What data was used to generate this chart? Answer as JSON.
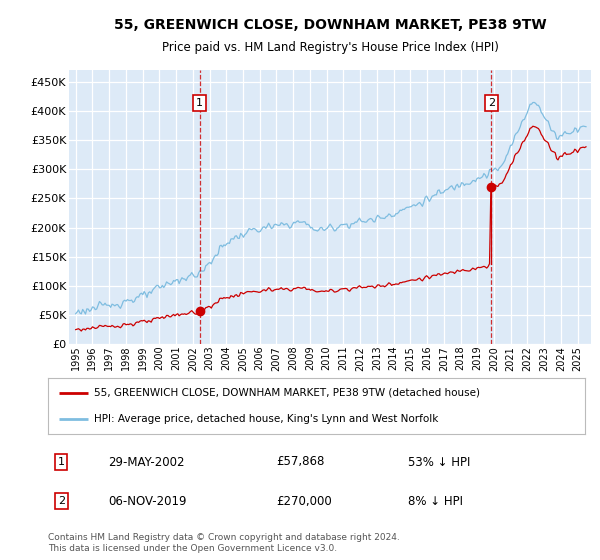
{
  "title": "55, GREENWICH CLOSE, DOWNHAM MARKET, PE38 9TW",
  "subtitle": "Price paid vs. HM Land Registry's House Price Index (HPI)",
  "bg_color": "#ddeaf7",
  "hpi_color": "#7fbde0",
  "price_color": "#cc0000",
  "ylim": [
    0,
    470000
  ],
  "yticks": [
    0,
    50000,
    100000,
    150000,
    200000,
    250000,
    300000,
    350000,
    400000,
    450000
  ],
  "ytick_labels": [
    "£0",
    "£50K",
    "£100K",
    "£150K",
    "£200K",
    "£250K",
    "£300K",
    "£350K",
    "£400K",
    "£450K"
  ],
  "sale1_date": 2002.41,
  "sale1_price": 57868,
  "sale1_label": "1",
  "sale2_date": 2019.84,
  "sale2_price": 270000,
  "sale2_label": "2",
  "legend_line1": "55, GREENWICH CLOSE, DOWNHAM MARKET, PE38 9TW (detached house)",
  "legend_line2": "HPI: Average price, detached house, King's Lynn and West Norfolk",
  "note1_label": "1",
  "note1_date": "29-MAY-2002",
  "note1_price": "£57,868",
  "note1_hpi": "53% ↓ HPI",
  "note2_label": "2",
  "note2_date": "06-NOV-2019",
  "note2_price": "£270,000",
  "note2_hpi": "8% ↓ HPI",
  "footer": "Contains HM Land Registry data © Crown copyright and database right 2024.\nThis data is licensed under the Open Government Licence v3.0."
}
